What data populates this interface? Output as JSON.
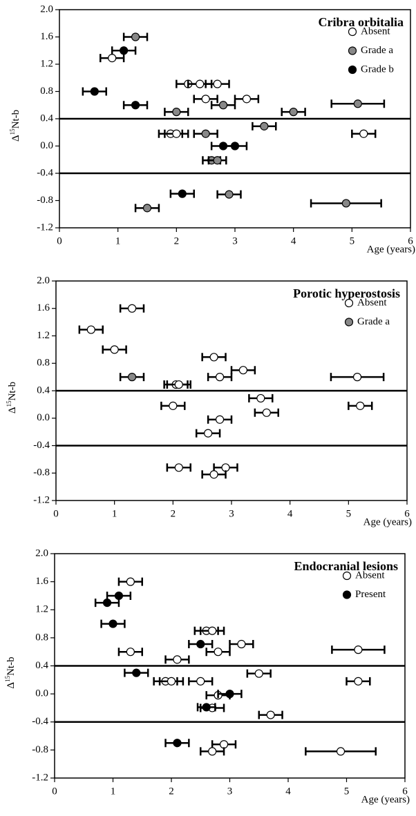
{
  "chart_data": [
    {
      "type": "scatter",
      "title": "Cribra orbitalia",
      "xlabel": "Age (years)",
      "ylabel_parts": [
        "Δ",
        "15",
        "Nt-b"
      ],
      "xlim": [
        0,
        6
      ],
      "xticks": [
        0,
        1,
        2,
        3,
        4,
        5,
        6
      ],
      "ylim": [
        -1.2,
        2.0
      ],
      "yticks": [
        {
          "value": 2.0,
          "label": "2.0"
        },
        {
          "value": 1.6,
          "label": "1.6"
        },
        {
          "value": 1.2,
          "label": "1.2"
        },
        {
          "value": 0.8,
          "label": "0.8"
        },
        {
          "value": 0.4,
          "label": "0.4"
        },
        {
          "value": 0.0,
          "label": "0.0"
        },
        {
          "value": -0.4,
          "label": "-0.4"
        },
        {
          "value": -0.8,
          "label": "-0.8"
        },
        {
          "value": -1.2,
          "label": "-1.2"
        }
      ],
      "hlines": [
        0.4,
        -0.4
      ],
      "legend": "upper right",
      "series": [
        {
          "name": "Absent",
          "color": "#ffffff",
          "x": [
            0.9,
            2.2,
            2.4,
            2.7,
            2.5,
            3.2,
            1.9,
            2.0,
            5.2
          ],
          "values": [
            1.29,
            0.91,
            0.91,
            0.91,
            0.69,
            0.69,
            0.18,
            0.18,
            0.18
          ],
          "xerr": [
            0.2,
            0.2,
            0.2,
            0.2,
            0.2,
            0.2,
            0.2,
            0.2,
            0.2
          ]
        },
        {
          "name": "Grade a",
          "color": "#888888",
          "x": [
            1.3,
            2.0,
            2.8,
            4.0,
            5.1,
            3.5,
            2.5,
            2.6,
            2.7,
            2.9,
            1.5,
            4.9
          ],
          "values": [
            1.6,
            0.5,
            0.6,
            0.5,
            0.62,
            0.29,
            0.18,
            -0.21,
            -0.21,
            -0.71,
            -0.91,
            -0.84
          ],
          "xerr": [
            0.2,
            0.2,
            0.2,
            0.2,
            0.45,
            0.2,
            0.2,
            0.15,
            0.15,
            0.2,
            0.2,
            0.6
          ]
        },
        {
          "name": "Grade b",
          "color": "#000000",
          "x": [
            1.1,
            0.6,
            1.3,
            2.8,
            3.0,
            2.1
          ],
          "values": [
            1.4,
            0.8,
            0.6,
            0.0,
            0.0,
            -0.7
          ],
          "xerr": [
            0.2,
            0.2,
            0.2,
            0.2,
            0.2,
            0.2
          ]
        }
      ]
    },
    {
      "type": "scatter",
      "title": "Porotic hyperostosis",
      "xlabel": "Age (years)",
      "ylabel_parts": [
        "Δ",
        "15",
        "Nt-b"
      ],
      "xlim": [
        0,
        6
      ],
      "xticks": [
        0,
        1,
        2,
        3,
        4,
        5,
        6
      ],
      "ylim": [
        -1.2,
        2.0
      ],
      "yticks": [
        {
          "value": 2.0,
          "label": "2.0"
        },
        {
          "value": 1.6,
          "label": "1.6"
        },
        {
          "value": 1.2,
          "label": "1.2"
        },
        {
          "value": 0.8,
          "label": "0.8"
        },
        {
          "value": 0.4,
          "label": "0.4"
        },
        {
          "value": 0.0,
          "label": "0.0"
        },
        {
          "value": -0.4,
          "label": "-0.4"
        },
        {
          "value": -0.8,
          "label": "-0.8"
        },
        {
          "value": -1.2,
          "label": "-1.2"
        }
      ],
      "hlines": [
        0.4,
        -0.4
      ],
      "legend": "upper right",
      "series": [
        {
          "name": "Absent",
          "color": "#ffffff",
          "x": [
            1.3,
            0.6,
            1.0,
            2.7,
            3.2,
            2.8,
            5.15,
            2.05,
            2.1,
            3.5,
            2.0,
            5.2,
            3.6,
            2.8,
            2.6,
            2.9,
            2.1,
            2.7
          ],
          "values": [
            1.6,
            1.29,
            1.0,
            0.89,
            0.7,
            0.6,
            0.6,
            0.49,
            0.49,
            0.29,
            0.18,
            0.18,
            0.08,
            -0.02,
            -0.22,
            -0.72,
            -0.72,
            -0.82
          ],
          "xerr": [
            0.2,
            0.2,
            0.2,
            0.2,
            0.2,
            0.2,
            0.45,
            0.2,
            0.2,
            0.2,
            0.2,
            0.2,
            0.2,
            0.2,
            0.2,
            0.2,
            0.2,
            0.2
          ]
        },
        {
          "name": "Grade a",
          "color": "#888888",
          "x": [
            1.3
          ],
          "values": [
            0.6
          ],
          "xerr": [
            0.2
          ]
        }
      ]
    },
    {
      "type": "scatter",
      "title": "Endocranial lesions",
      "xlabel": "Age (years)",
      "ylabel_parts": [
        "Δ",
        "15",
        "Nt-b"
      ],
      "xlim": [
        0,
        6
      ],
      "xticks": [
        0,
        1,
        2,
        3,
        4,
        5,
        6
      ],
      "ylim": [
        -1.2,
        2.0
      ],
      "yticks": [
        {
          "value": 2.0,
          "label": "2.0"
        },
        {
          "value": 1.6,
          "label": "1.6"
        },
        {
          "value": 1.2,
          "label": "1.2"
        },
        {
          "value": 0.8,
          "label": "0.8"
        },
        {
          "value": 0.4,
          "label": "0.4"
        },
        {
          "value": 0.0,
          "label": "0.0"
        },
        {
          "value": -0.4,
          "label": "-0.4"
        },
        {
          "value": -0.8,
          "label": "-0.8"
        },
        {
          "value": -1.2,
          "label": "-1.2"
        }
      ],
      "hlines": [
        0.4,
        -0.4
      ],
      "legend": "upper right",
      "series": [
        {
          "name": "Absent",
          "color": "#ffffff",
          "x": [
            1.3,
            2.6,
            2.7,
            3.2,
            1.3,
            2.8,
            5.2,
            2.1,
            1.9,
            2.0,
            2.5,
            3.5,
            5.2,
            2.8,
            2.7,
            3.7,
            2.9,
            2.7,
            4.9
          ],
          "values": [
            1.6,
            0.9,
            0.9,
            0.71,
            0.6,
            0.6,
            0.63,
            0.49,
            0.18,
            0.18,
            0.18,
            0.29,
            0.18,
            -0.02,
            -0.2,
            -0.3,
            -0.72,
            -0.82,
            -0.82
          ],
          "xerr": [
            0.2,
            0.2,
            0.2,
            0.2,
            0.2,
            0.2,
            0.45,
            0.2,
            0.2,
            0.2,
            0.2,
            0.2,
            0.2,
            0.2,
            0.2,
            0.2,
            0.2,
            0.2,
            0.6
          ]
        },
        {
          "name": "Present",
          "color": "#000000",
          "x": [
            1.1,
            0.9,
            1.0,
            2.5,
            1.4,
            3.0,
            2.6,
            2.1
          ],
          "values": [
            1.4,
            1.3,
            1.0,
            0.71,
            0.3,
            0.0,
            -0.19,
            -0.7
          ],
          "xerr": [
            0.2,
            0.2,
            0.2,
            0.2,
            0.2,
            0.2,
            0.15,
            0.2
          ]
        }
      ]
    }
  ]
}
